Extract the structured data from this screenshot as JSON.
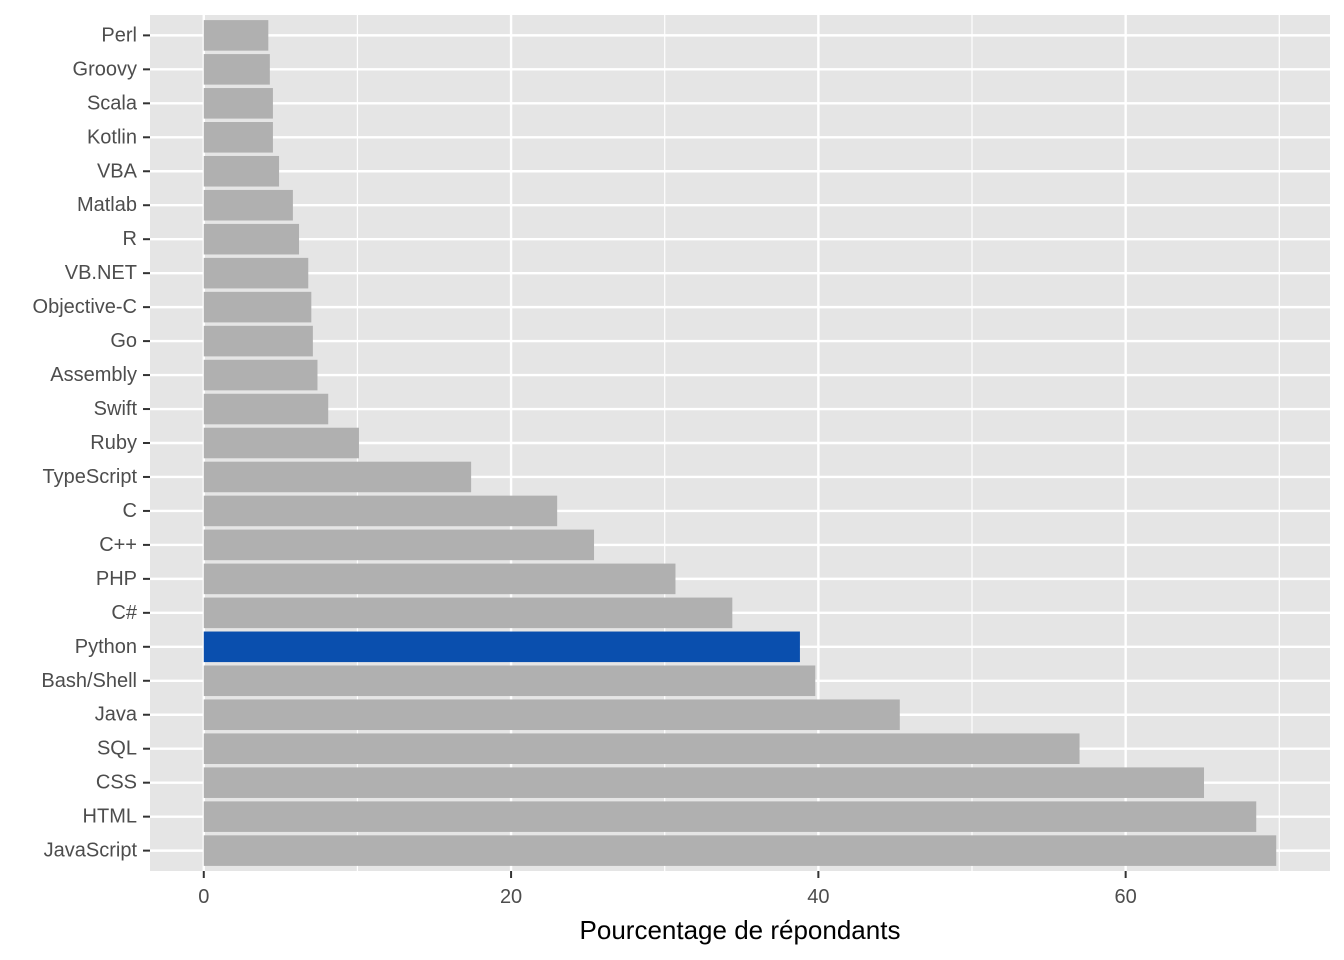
{
  "chart_data": {
    "type": "bar",
    "orientation": "horizontal",
    "title": "",
    "xlabel": "Pourcentage de répondants",
    "ylabel": "",
    "xlim": [
      -3.5,
      73.3
    ],
    "x_ticks": [
      0,
      20,
      40,
      60
    ],
    "grid": true,
    "legend": "none",
    "colors": {
      "panel": "#e5e5e5",
      "grid": "#ffffff",
      "bar": "#b0b0b0",
      "highlight": "#0a4fae",
      "tick": "#333333"
    },
    "highlight_category": "Python",
    "categories": [
      "Perl",
      "Groovy",
      "Scala",
      "Kotlin",
      "VBA",
      "Matlab",
      "R",
      "VB.NET",
      "Objective-C",
      "Go",
      "Assembly",
      "Swift",
      "Ruby",
      "TypeScript",
      "C",
      "C++",
      "PHP",
      "C#",
      "Python",
      "Bash/Shell",
      "Java",
      "SQL",
      "CSS",
      "HTML",
      "JavaScript"
    ],
    "values": [
      4.2,
      4.3,
      4.5,
      4.5,
      4.9,
      5.8,
      6.2,
      6.8,
      7.0,
      7.1,
      7.4,
      8.1,
      10.1,
      17.4,
      23.0,
      25.4,
      30.7,
      34.4,
      38.8,
      39.8,
      45.3,
      57.0,
      65.1,
      68.5,
      69.8
    ]
  }
}
